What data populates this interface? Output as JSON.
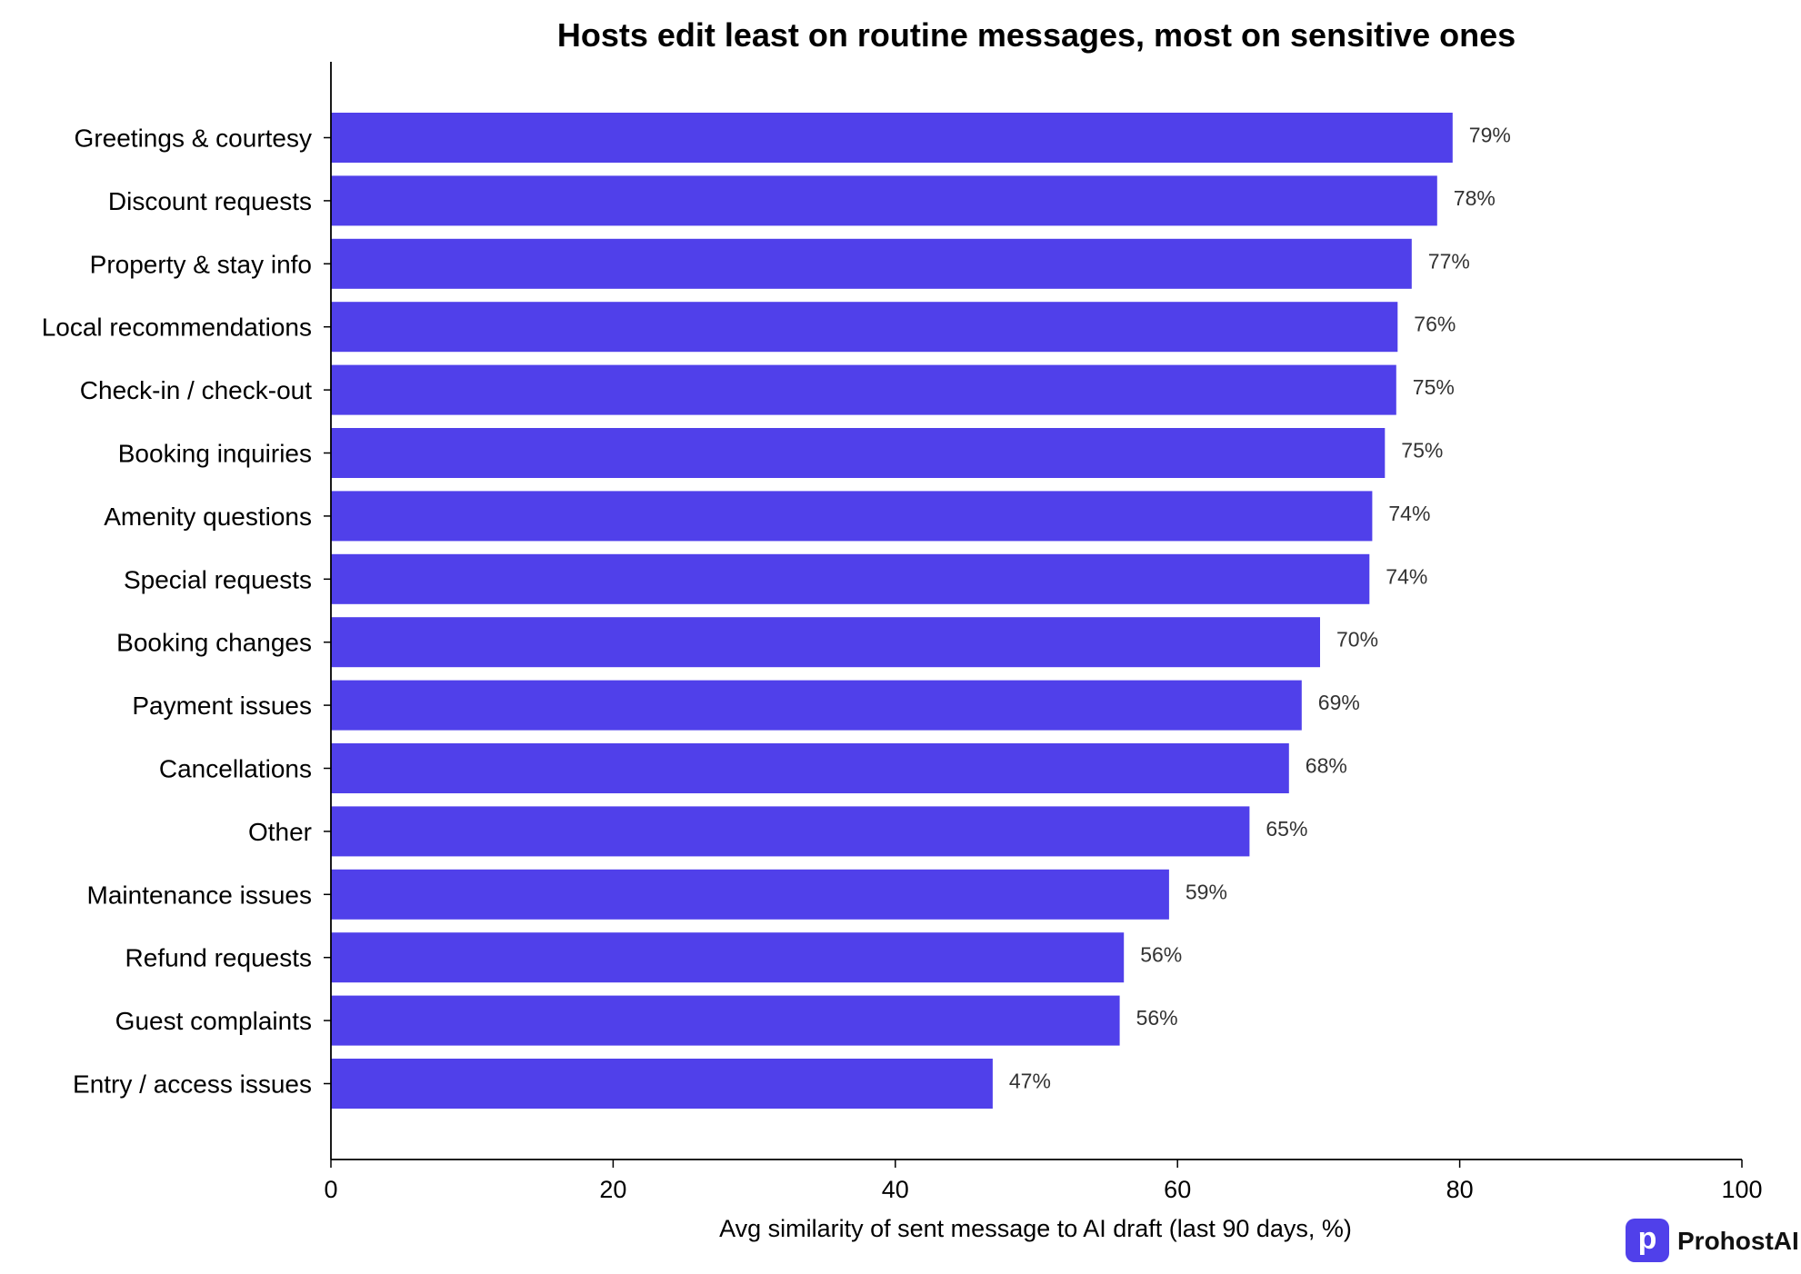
{
  "chart_data": {
    "type": "bar",
    "orientation": "horizontal",
    "title": "Hosts edit least on routine messages, most on sensitive ones",
    "xlabel": "Avg similarity of sent message to AI draft (last 90 days, %)",
    "ylabel": "",
    "xlim": [
      0,
      100
    ],
    "x_ticks": [
      "0",
      "20",
      "40",
      "60",
      "80",
      "100"
    ],
    "grid": false,
    "bar_color": "#5040EA",
    "categories": [
      "Greetings & courtesy",
      "Discount requests",
      "Property & stay info",
      "Local recommendations",
      "Check-in / check-out",
      "Booking inquiries",
      "Amenity questions",
      "Special requests",
      "Booking changes",
      "Payment issues",
      "Cancellations",
      "Other",
      "Maintenance issues",
      "Refund requests",
      "Guest complaints",
      "Entry / access issues"
    ],
    "values": [
      79.5,
      78.4,
      76.6,
      75.6,
      75.5,
      74.7,
      73.8,
      73.6,
      70.1,
      68.8,
      67.9,
      65.1,
      59.4,
      56.2,
      55.9,
      46.9
    ],
    "value_labels": [
      "79%",
      "78%",
      "77%",
      "76%",
      "75%",
      "75%",
      "74%",
      "74%",
      "70%",
      "69%",
      "68%",
      "65%",
      "59%",
      "56%",
      "56%",
      "47%"
    ]
  },
  "brand": {
    "name": "ProhostAI",
    "mark_letter": "p",
    "color": "#5040EA"
  }
}
